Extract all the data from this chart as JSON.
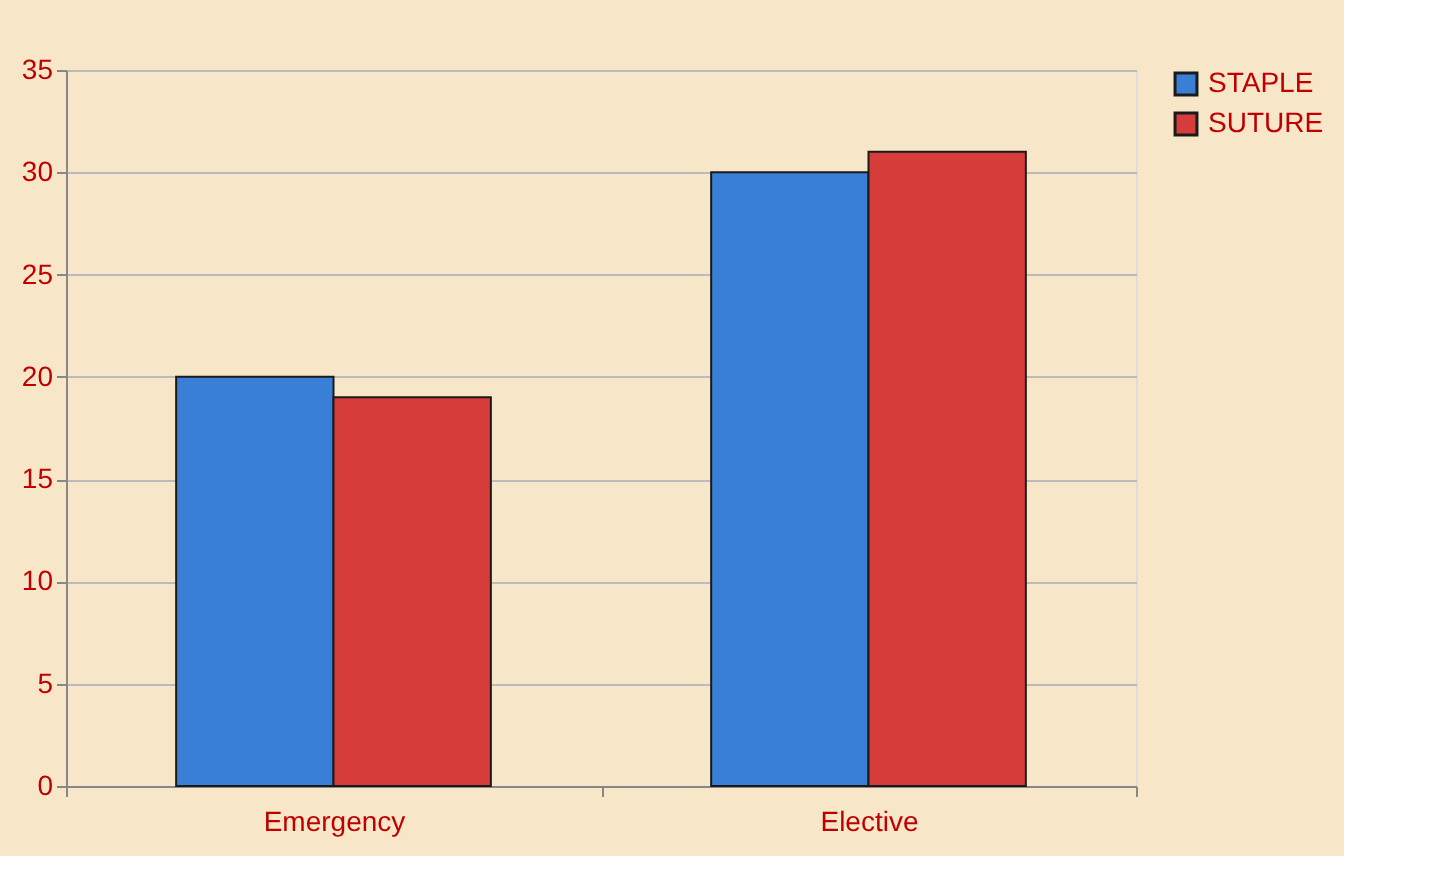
{
  "chart_data": {
    "type": "bar",
    "categories": [
      "Emergency",
      "Elective"
    ],
    "series": [
      {
        "name": "STAPLE",
        "color": "#3a7fd6",
        "values": [
          20,
          30
        ]
      },
      {
        "name": "SUTURE",
        "color": "#d63c3a",
        "values": [
          19,
          31
        ]
      }
    ],
    "ylim": [
      0,
      35
    ],
    "yticks": [
      0,
      5,
      10,
      15,
      20,
      25,
      30,
      35
    ],
    "grid": "y",
    "legend": "right"
  }
}
